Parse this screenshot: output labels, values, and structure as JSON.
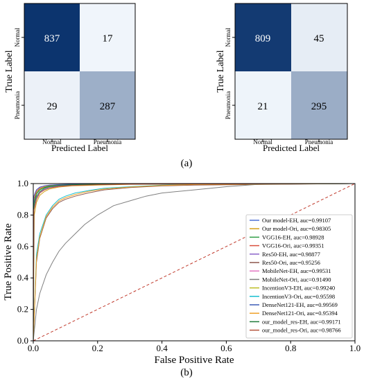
{
  "panel_a_caption": "(a)",
  "panel_b_caption": "(b)",
  "chart_data": [
    {
      "type": "heatmap",
      "xlabel": "Predicted Label",
      "ylabel": "True Label",
      "x_categories": [
        "Normal",
        "Pneumonia"
      ],
      "y_categories": [
        "Normal",
        "Pneumonia"
      ],
      "values": [
        [
          837,
          17
        ],
        [
          29,
          287
        ]
      ],
      "colormap": "Blues",
      "max": 854
    },
    {
      "type": "heatmap",
      "xlabel": "Predicted Label",
      "ylabel": "True Label",
      "x_categories": [
        "Normal",
        "Pneumonia"
      ],
      "y_categories": [
        "Normal",
        "Pneumonia"
      ],
      "values": [
        [
          809,
          45
        ],
        [
          21,
          295
        ]
      ],
      "colormap": "Blues",
      "max": 854
    },
    {
      "type": "line",
      "xlabel": "False Positive Rate",
      "ylabel": "True Positive Rate",
      "xlim": [
        0,
        1
      ],
      "ylim": [
        0,
        1
      ],
      "xticks": [
        "0.0",
        "0.2",
        "0.4",
        "0.6",
        "0.8",
        "1.0"
      ],
      "yticks": [
        "0.0",
        "0.2",
        "0.4",
        "0.6",
        "0.8",
        "1.0"
      ],
      "legend_position": "bottom-right",
      "chance_line": {
        "x": [
          0,
          1
        ],
        "y": [
          0,
          1
        ],
        "color": "#c0392b",
        "style": "dashed"
      },
      "series": [
        {
          "name": "Our model-EH, auc=0.99107",
          "color": "#4c6fd6",
          "x": [
            0,
            0.002,
            0.01,
            0.02,
            0.035,
            0.05,
            0.08,
            0.12,
            0.2,
            0.3,
            1
          ],
          "y": [
            0,
            0.88,
            0.94,
            0.965,
            0.975,
            0.985,
            0.99,
            0.993,
            0.996,
            0.998,
            1
          ]
        },
        {
          "name": "Our model-Ori, auc=0.98305",
          "color": "#d4a017",
          "x": [
            0,
            0.003,
            0.01,
            0.02,
            0.035,
            0.05,
            0.08,
            0.12,
            0.2,
            0.3,
            1
          ],
          "y": [
            0,
            0.8,
            0.88,
            0.925,
            0.95,
            0.965,
            0.978,
            0.986,
            0.99,
            0.995,
            1
          ]
        },
        {
          "name": "VGG16-EH, auc=0.98928",
          "color": "#2e9e44",
          "x": [
            0,
            0.002,
            0.01,
            0.02,
            0.035,
            0.05,
            0.08,
            0.12,
            0.2,
            0.3,
            1
          ],
          "y": [
            0,
            0.85,
            0.92,
            0.95,
            0.97,
            0.98,
            0.985,
            0.99,
            0.994,
            0.997,
            1
          ]
        },
        {
          "name": "VGG16-Ori, auc=0.99351",
          "color": "#d94f3d",
          "x": [
            0,
            0.002,
            0.01,
            0.02,
            0.035,
            0.05,
            0.08,
            0.12,
            0.2,
            0.3,
            1
          ],
          "y": [
            0,
            0.9,
            0.95,
            0.97,
            0.98,
            0.986,
            0.99,
            0.994,
            0.997,
            0.999,
            1
          ]
        },
        {
          "name": "Res50-EH, auc=0.98877",
          "color": "#8a63c9",
          "x": [
            0,
            0.002,
            0.01,
            0.02,
            0.035,
            0.05,
            0.08,
            0.12,
            0.2,
            0.3,
            1
          ],
          "y": [
            0,
            0.84,
            0.91,
            0.945,
            0.965,
            0.975,
            0.985,
            0.99,
            0.994,
            0.997,
            1
          ]
        },
        {
          "name": "Res50-Ori, auc=0.95256",
          "color": "#8c564b",
          "x": [
            0,
            0.01,
            0.02,
            0.04,
            0.06,
            0.08,
            0.1,
            0.13,
            0.17,
            0.22,
            0.3,
            0.4,
            0.5,
            1
          ],
          "y": [
            0,
            0.5,
            0.65,
            0.78,
            0.84,
            0.88,
            0.9,
            0.92,
            0.94,
            0.96,
            0.975,
            0.985,
            0.99,
            1
          ]
        },
        {
          "name": "MobileNet-EH, auc=0.99531",
          "color": "#e377c2",
          "x": [
            0,
            0.002,
            0.01,
            0.02,
            0.035,
            0.05,
            0.08,
            0.12,
            0.2,
            0.3,
            1
          ],
          "y": [
            0,
            0.92,
            0.96,
            0.975,
            0.985,
            0.99,
            0.993,
            0.995,
            0.998,
            0.999,
            1
          ]
        },
        {
          "name": "MobileNet-Ori, auc=0.91490",
          "color": "#7f7f7f",
          "x": [
            0,
            0.01,
            0.02,
            0.04,
            0.06,
            0.08,
            0.1,
            0.13,
            0.16,
            0.2,
            0.25,
            0.3,
            0.35,
            0.4,
            0.5,
            0.6,
            0.7,
            1
          ],
          "y": [
            0,
            0.2,
            0.3,
            0.42,
            0.5,
            0.57,
            0.62,
            0.68,
            0.74,
            0.8,
            0.86,
            0.89,
            0.92,
            0.94,
            0.96,
            0.98,
            0.995,
            1
          ]
        },
        {
          "name": "IncentionV3-EH, auc=0.99240",
          "color": "#bcbd22",
          "x": [
            0,
            0.002,
            0.01,
            0.02,
            0.035,
            0.05,
            0.08,
            0.12,
            0.2,
            0.3,
            1
          ],
          "y": [
            0,
            0.88,
            0.94,
            0.965,
            0.978,
            0.985,
            0.99,
            0.993,
            0.996,
            0.998,
            1
          ]
        },
        {
          "name": "IncentionV3-Ori, auc=0.95598",
          "color": "#17becf",
          "x": [
            0,
            0.01,
            0.02,
            0.04,
            0.06,
            0.08,
            0.1,
            0.13,
            0.17,
            0.22,
            0.3,
            0.4,
            0.5,
            1
          ],
          "y": [
            0,
            0.55,
            0.68,
            0.8,
            0.86,
            0.9,
            0.92,
            0.94,
            0.955,
            0.97,
            0.98,
            0.99,
            0.995,
            1
          ]
        },
        {
          "name": "DenseNet121-EH, auc=0.99569",
          "color": "#3b5bb5",
          "x": [
            0,
            0.002,
            0.01,
            0.02,
            0.035,
            0.05,
            0.08,
            0.12,
            0.2,
            0.3,
            1
          ],
          "y": [
            0,
            0.92,
            0.96,
            0.977,
            0.986,
            0.99,
            0.994,
            0.996,
            0.998,
            0.999,
            1
          ]
        },
        {
          "name": "DenseNet121-Ori, auc=0.95394",
          "color": "#f0a028",
          "x": [
            0,
            0.01,
            0.02,
            0.04,
            0.06,
            0.08,
            0.1,
            0.13,
            0.17,
            0.22,
            0.3,
            0.4,
            0.5,
            1
          ],
          "y": [
            0,
            0.52,
            0.66,
            0.79,
            0.85,
            0.89,
            0.91,
            0.93,
            0.95,
            0.965,
            0.978,
            0.988,
            0.994,
            1
          ]
        },
        {
          "name": "our_model_res-EH, auc=0.99171",
          "color": "#1f7a3a",
          "x": [
            0,
            0.002,
            0.01,
            0.02,
            0.035,
            0.05,
            0.08,
            0.12,
            0.2,
            0.3,
            1
          ],
          "y": [
            0,
            0.87,
            0.935,
            0.96,
            0.975,
            0.983,
            0.989,
            0.993,
            0.996,
            0.998,
            1
          ]
        },
        {
          "name": "our_model_res-Ori, auc=0.98766",
          "color": "#b5533c",
          "x": [
            0,
            0.002,
            0.01,
            0.02,
            0.035,
            0.05,
            0.08,
            0.12,
            0.2,
            0.3,
            1
          ],
          "y": [
            0,
            0.83,
            0.9,
            0.94,
            0.96,
            0.972,
            0.982,
            0.988,
            0.993,
            0.996,
            1
          ]
        }
      ]
    }
  ]
}
